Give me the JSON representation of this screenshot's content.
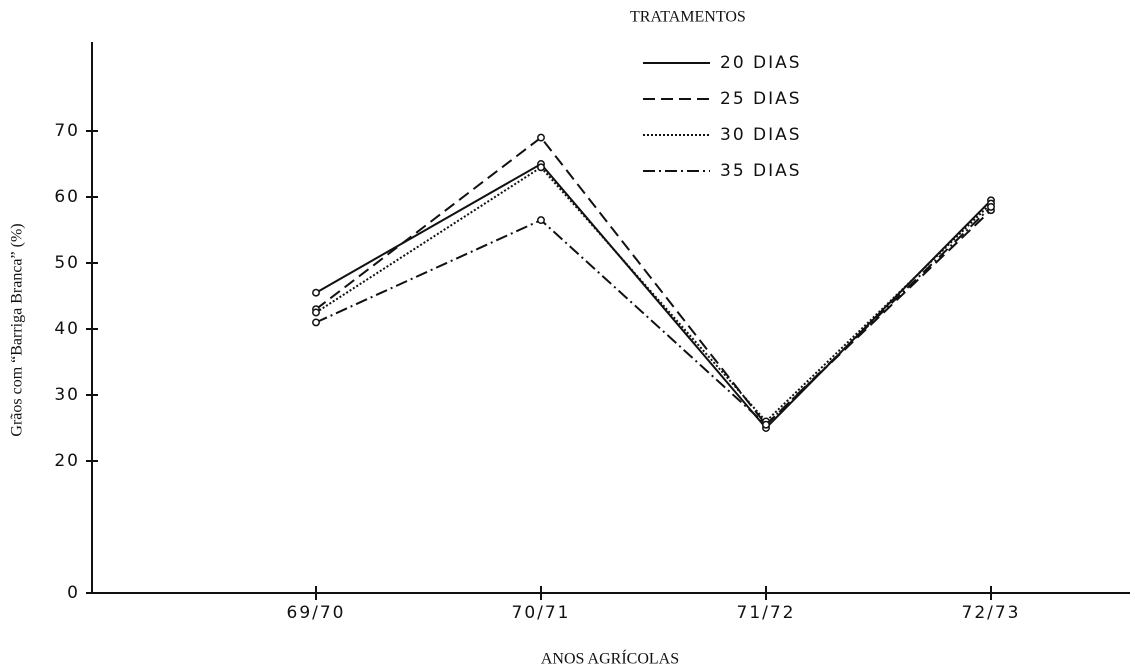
{
  "chart_data": {
    "type": "line",
    "legend_title": "TRATAMENTOS",
    "xlabel": "ANOS AGRÍCOLAS",
    "ylabel": "Grãos com “Barriga Branca” (%)",
    "categories": [
      "69/70",
      "70/71",
      "71/72",
      "72/73"
    ],
    "series": [
      {
        "name": "20 DIAS",
        "color": "#111111",
        "dash": "solid",
        "values": [
          45.5,
          65,
          25,
          59.5
        ]
      },
      {
        "name": "25 DIAS",
        "color": "#111111",
        "dash": "dashed",
        "values": [
          43,
          69,
          25.5,
          58
        ]
      },
      {
        "name": "30 DIAS",
        "color": "#111111",
        "dash": "dotted",
        "values": [
          42.5,
          64.5,
          26,
          59
        ]
      },
      {
        "name": "35 DIAS",
        "color": "#111111",
        "dash": "dashdot",
        "values": [
          41,
          56.5,
          25.5,
          58.5
        ]
      }
    ],
    "ylim": [
      0,
      80
    ],
    "yticks": [
      0,
      20,
      30,
      40,
      50,
      60,
      70
    ],
    "legend": "upper right"
  }
}
